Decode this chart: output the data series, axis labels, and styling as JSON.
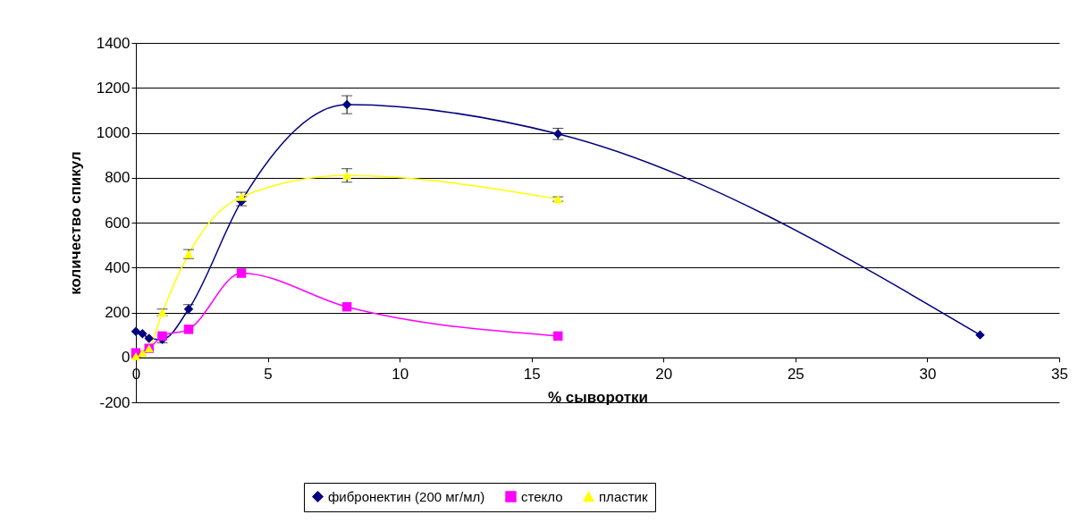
{
  "chart_data": {
    "type": "line",
    "xlabel": "% сыворотки",
    "ylabel": "количество спикул",
    "xlim": [
      0,
      35
    ],
    "xticks": [
      0,
      5,
      10,
      15,
      20,
      25,
      30,
      35
    ],
    "ylim": [
      -200,
      1400
    ],
    "yticks": [
      -200,
      0,
      200,
      400,
      600,
      800,
      1000,
      1200,
      1400
    ],
    "grid": "y",
    "legend": "bottom",
    "series": [
      {
        "name": "фибронектин (200 мг/мл)",
        "color": "#000080",
        "marker": "diamond",
        "x": [
          0,
          0.25,
          0.5,
          1,
          2,
          4,
          8,
          16,
          32
        ],
        "values": [
          115,
          105,
          85,
          80,
          215,
          695,
          1125,
          995,
          100
        ],
        "errors": [
          null,
          null,
          null,
          15,
          20,
          20,
          40,
          25,
          null
        ]
      },
      {
        "name": "стекло",
        "color": "#ff00ff",
        "marker": "square",
        "x": [
          0,
          0.5,
          1,
          2,
          4,
          8,
          16
        ],
        "values": [
          20,
          40,
          95,
          125,
          375,
          225,
          95
        ],
        "errors": [
          null,
          null,
          null,
          null,
          null,
          null,
          null
        ]
      },
      {
        "name": "пластик",
        "color": "#ffff00",
        "marker": "triangle",
        "x": [
          0,
          0.25,
          0.5,
          1,
          2,
          4,
          8,
          16
        ],
        "values": [
          5,
          20,
          40,
          200,
          460,
          715,
          810,
          705
        ],
        "errors": [
          null,
          null,
          null,
          15,
          20,
          20,
          30,
          10
        ]
      }
    ]
  }
}
